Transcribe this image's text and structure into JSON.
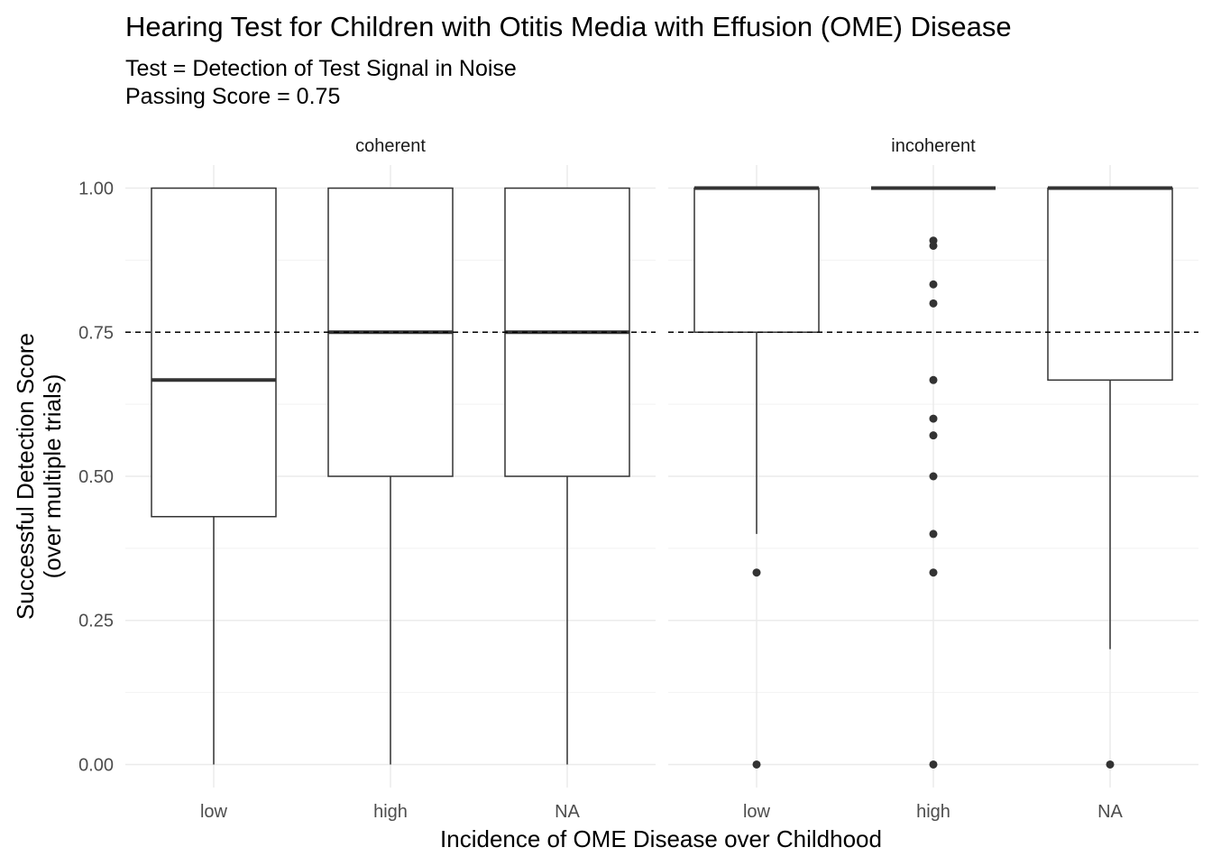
{
  "chart_data": {
    "type": "boxplot",
    "title": "Hearing Test for Children with Otitis Media with Effusion (OME) Disease",
    "subtitle": [
      "Test = Detection of Test Signal in Noise",
      "Passing Score = 0.75"
    ],
    "xlabel": "Incidence of OME Disease over Childhood",
    "ylabel": [
      "Successful Detection Score",
      "(over multiple trials)"
    ],
    "ylim": [
      -0.04,
      1.04
    ],
    "yticks": [
      0,
      0.25,
      0.5,
      0.75,
      1
    ],
    "ytick_labels": [
      "0.00",
      "0.25",
      "0.50",
      "0.75",
      "1.00"
    ],
    "categories": [
      "low",
      "high",
      "NA"
    ],
    "reference_line": {
      "y": 0.75,
      "style": "dashed"
    },
    "grid": true,
    "facets": [
      {
        "label": "coherent",
        "boxes": [
          {
            "category": "low",
            "whisker_low": 0,
            "q1": 0.43,
            "median": 0.667,
            "q3": 1,
            "whisker_high": 1,
            "outliers": []
          },
          {
            "category": "high",
            "whisker_low": 0,
            "q1": 0.5,
            "median": 0.75,
            "q3": 1,
            "whisker_high": 1,
            "outliers": []
          },
          {
            "category": "NA",
            "whisker_low": 0,
            "q1": 0.5,
            "median": 0.75,
            "q3": 1,
            "whisker_high": 1,
            "outliers": []
          }
        ]
      },
      {
        "label": "incoherent",
        "boxes": [
          {
            "category": "low",
            "whisker_low": 0.4,
            "q1": 0.75,
            "median": 1,
            "q3": 1,
            "whisker_high": 1,
            "outliers": [
              0.333,
              0
            ]
          },
          {
            "category": "high",
            "whisker_low": 1,
            "q1": 1,
            "median": 1,
            "q3": 1,
            "whisker_high": 1,
            "outliers": [
              0.909,
              0.9,
              0.833,
              0.8,
              0.667,
              0.6,
              0.571,
              0.5,
              0.4,
              0.333,
              0
            ]
          },
          {
            "category": "NA",
            "whisker_low": 0.2,
            "q1": 0.667,
            "median": 1,
            "q3": 1,
            "whisker_high": 1,
            "outliers": [
              0
            ]
          }
        ]
      }
    ]
  }
}
